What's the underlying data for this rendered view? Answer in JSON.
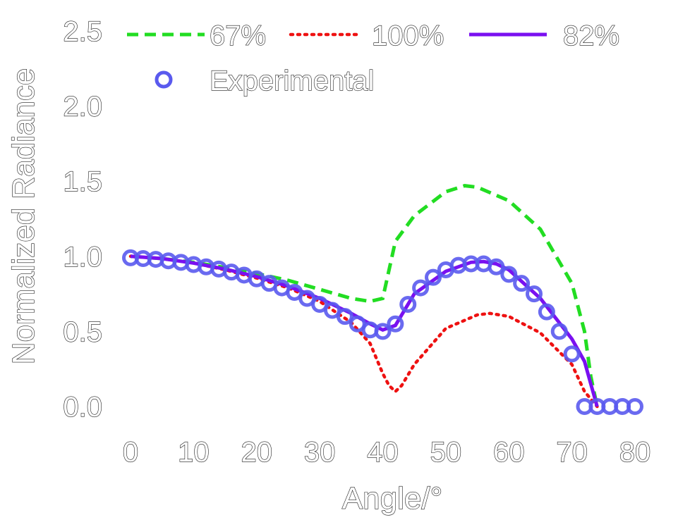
{
  "chart_data": {
    "type": "line",
    "xlabel": "Angle/°",
    "ylabel": "Normalized Radiance",
    "xlim": [
      0,
      80
    ],
    "ylim": [
      0,
      2.5
    ],
    "xticks": [
      "0",
      "10",
      "20",
      "30",
      "40",
      "50",
      "60",
      "70",
      "80"
    ],
    "yticks": [
      "0.0",
      "0.5",
      "1.0",
      "1.5",
      "2.0",
      "2.5"
    ],
    "legend_position": "top",
    "grid": false,
    "series": [
      {
        "name": "67%",
        "style": "dashed",
        "color": "#22dd22",
        "x": [
          0,
          5,
          10,
          15,
          20,
          25,
          30,
          35,
          38,
          40,
          42,
          45,
          50,
          53,
          55,
          60,
          65,
          70,
          72,
          73,
          74
        ],
        "y": [
          1.0,
          0.985,
          0.96,
          0.925,
          0.885,
          0.84,
          0.78,
          0.72,
          0.7,
          0.72,
          1.1,
          1.27,
          1.43,
          1.47,
          1.46,
          1.37,
          1.18,
          0.82,
          0.5,
          0.2,
          0.0
        ]
      },
      {
        "name": "100%",
        "style": "dotted",
        "color": "#ee1111",
        "x": [
          0,
          5,
          10,
          15,
          20,
          25,
          30,
          35,
          38,
          40,
          41,
          42,
          43,
          45,
          50,
          55,
          57,
          60,
          65,
          70,
          72,
          74
        ],
        "y": [
          1.0,
          0.985,
          0.955,
          0.91,
          0.855,
          0.79,
          0.7,
          0.56,
          0.42,
          0.22,
          0.14,
          0.1,
          0.14,
          0.28,
          0.52,
          0.61,
          0.62,
          0.6,
          0.49,
          0.28,
          0.1,
          0.0
        ]
      },
      {
        "name": "82%",
        "style": "solid",
        "color": "#7a10f0",
        "x": [
          0,
          5,
          10,
          15,
          20,
          25,
          30,
          35,
          38,
          40,
          42,
          45,
          50,
          54,
          56,
          58,
          60,
          65,
          70,
          72,
          73,
          74
        ],
        "y": [
          1.0,
          0.985,
          0.955,
          0.915,
          0.865,
          0.8,
          0.72,
          0.62,
          0.55,
          0.51,
          0.54,
          0.75,
          0.9,
          0.96,
          0.965,
          0.95,
          0.91,
          0.72,
          0.45,
          0.3,
          0.15,
          0.0
        ]
      },
      {
        "name": "Experimental",
        "style": "markers",
        "color": "#5a5aee",
        "x": [
          0,
          2,
          4,
          6,
          8,
          10,
          12,
          14,
          16,
          18,
          20,
          22,
          24,
          26,
          28,
          30,
          32,
          34,
          36,
          38,
          40,
          42,
          44,
          46,
          48,
          50,
          52,
          54,
          56,
          58,
          60,
          62,
          64,
          66,
          68,
          70,
          72,
          74,
          76,
          78,
          80
        ],
        "y": [
          0.99,
          0.985,
          0.98,
          0.97,
          0.96,
          0.945,
          0.93,
          0.915,
          0.895,
          0.875,
          0.85,
          0.82,
          0.79,
          0.76,
          0.72,
          0.68,
          0.64,
          0.6,
          0.55,
          0.51,
          0.5,
          0.55,
          0.68,
          0.79,
          0.86,
          0.91,
          0.94,
          0.95,
          0.95,
          0.93,
          0.88,
          0.82,
          0.75,
          0.63,
          0.5,
          0.35,
          0.0,
          0.0,
          0.0,
          0.0,
          0.0
        ]
      }
    ]
  }
}
